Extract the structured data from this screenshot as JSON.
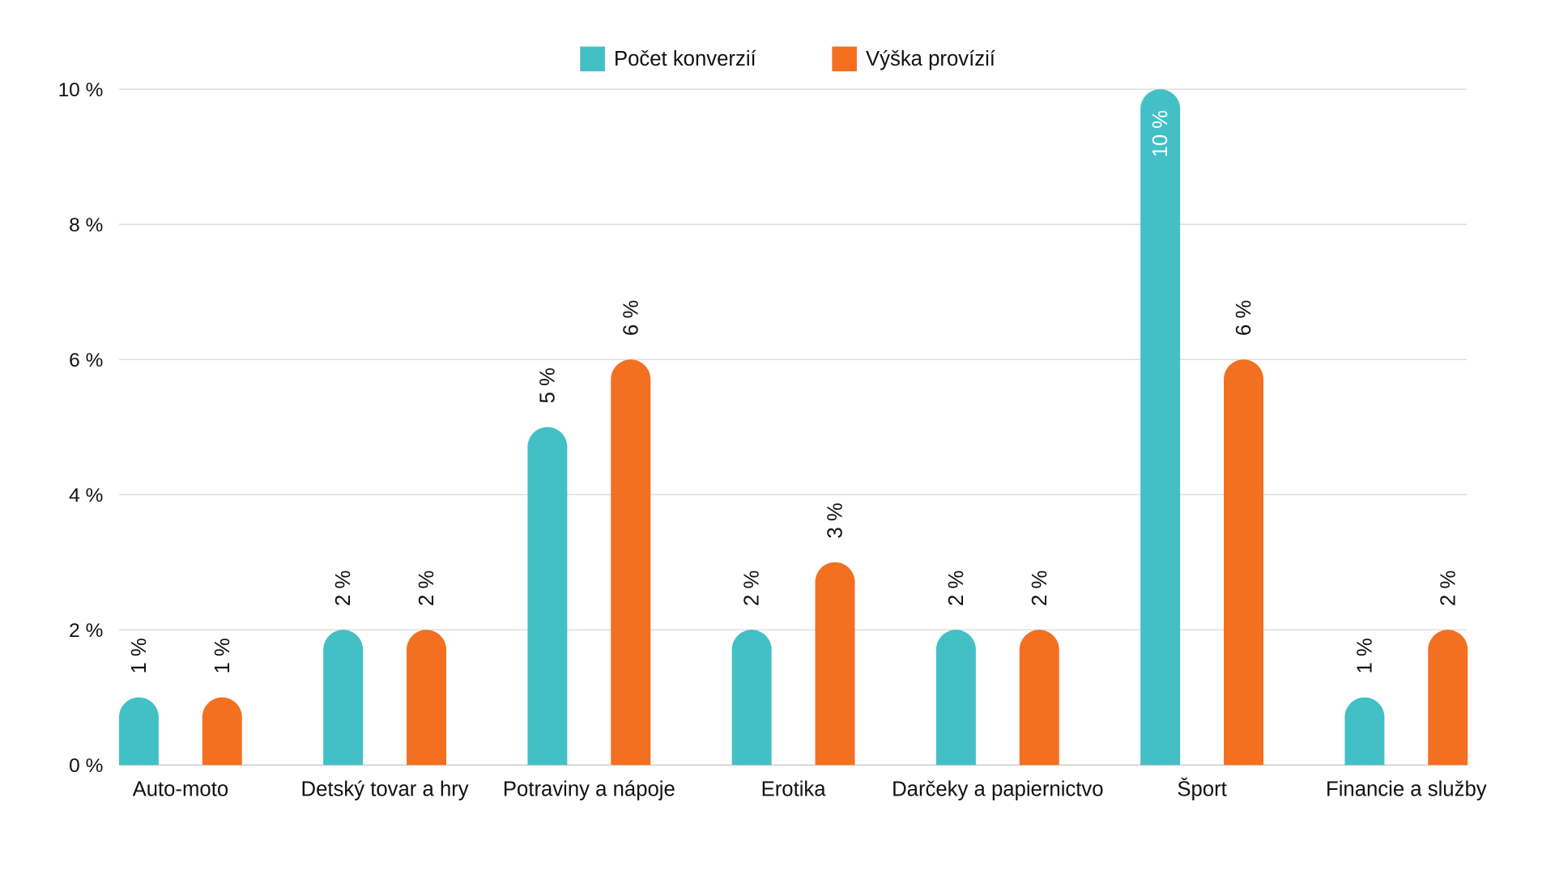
{
  "chart_data": {
    "type": "bar",
    "title": "",
    "xlabel": "",
    "ylabel": "",
    "ylim": [
      0,
      10
    ],
    "yticks": [
      0,
      2,
      4,
      6,
      8,
      10
    ],
    "ytick_labels": [
      "0 %",
      "2 %",
      "4 %",
      "6 %",
      "8 %",
      "10 %"
    ],
    "grid": true,
    "legend_position": "top-center",
    "categories": [
      "Auto-moto",
      "Detský tovar a hry",
      "Potraviny a nápoje",
      "Erotika",
      "Darčeky a papiernictvo",
      "Šport",
      "Financie a služby"
    ],
    "series": [
      {
        "name": "Počet konverzií",
        "color": "#42c0c5",
        "values": [
          1,
          2,
          5,
          2,
          2,
          10,
          1
        ],
        "labels": [
          "1 %",
          "2 %",
          "5 %",
          "2 %",
          "2 %",
          "10 %",
          "1 %"
        ]
      },
      {
        "name": "Výška provízií",
        "color": "#f37021",
        "values": [
          1,
          2,
          6,
          3,
          2,
          6,
          2
        ],
        "labels": [
          "1 %",
          "2 %",
          "6 %",
          "3 %",
          "2 %",
          "6 %",
          "2 %"
        ]
      }
    ]
  }
}
